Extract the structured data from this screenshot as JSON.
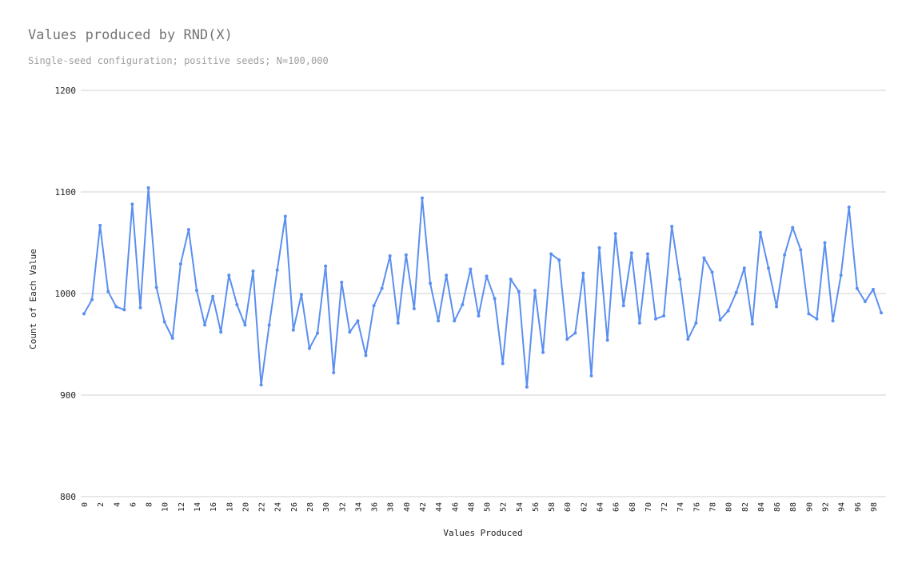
{
  "chart_data": {
    "type": "line",
    "title": "Values produced by RND(X)",
    "subtitle": "Single-seed configuration; positive seeds; N=100,000",
    "xlabel": "Values Produced",
    "ylabel": "Count of Each Value",
    "ylim": [
      800,
      1200
    ],
    "yticks": [
      800,
      900,
      1000,
      1100,
      1200
    ],
    "xticks": [
      0,
      2,
      4,
      6,
      8,
      10,
      12,
      14,
      16,
      18,
      20,
      22,
      24,
      26,
      28,
      30,
      32,
      34,
      36,
      38,
      40,
      42,
      44,
      46,
      48,
      50,
      52,
      54,
      56,
      58,
      60,
      62,
      64,
      66,
      68,
      70,
      72,
      74,
      76,
      78,
      80,
      82,
      84,
      86,
      88,
      90,
      92,
      94,
      96,
      98
    ],
    "grid": true,
    "legend": "none",
    "colors": {
      "line": "#5b8ff0",
      "grid": "#d0d0d0",
      "tick_text": "#222222"
    },
    "series": [
      {
        "values": [
          980,
          994,
          1067,
          1002,
          987,
          984,
          1088,
          986,
          1104,
          1006,
          972,
          956,
          1029,
          1063,
          1003,
          969,
          997,
          962,
          1018,
          989,
          969,
          1022,
          910,
          969,
          1023,
          1076,
          964,
          999,
          946,
          961,
          1027,
          922,
          1011,
          962,
          973,
          939,
          988,
          1005,
          1037,
          971,
          1038,
          985,
          1094,
          1010,
          973,
          1018,
          973,
          989,
          1024,
          978,
          1017,
          995,
          931,
          1014,
          1002,
          908,
          1003,
          942,
          1039,
          1033,
          955,
          961,
          1020,
          919,
          1045,
          954,
          1059,
          988,
          1040,
          971,
          1039,
          975,
          978,
          1066,
          1014,
          955,
          971,
          1035,
          1021,
          974,
          983,
          1001,
          1025,
          970,
          1060,
          1025,
          987,
          1038,
          1065,
          1043,
          980,
          975,
          1050,
          973,
          1018,
          1085,
          1005,
          992,
          1004,
          981
        ]
      }
    ]
  }
}
